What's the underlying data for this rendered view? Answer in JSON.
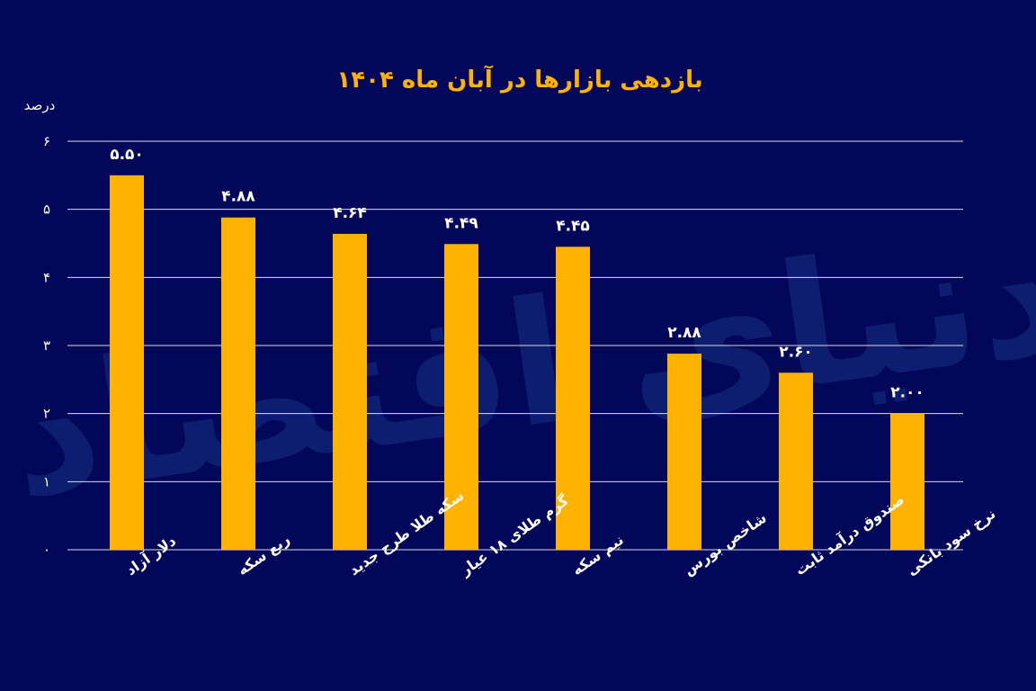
{
  "watermark": "دنیای اقتصاد",
  "colors": {
    "background": "#03075a",
    "bar": "#ffb300",
    "title": "#ffb300",
    "grid": "#ffffff",
    "text": "#ffffff"
  },
  "chart_data": {
    "type": "bar",
    "title": "بازدهی بازارها در آبان ماه ۱۴۰۴",
    "ylabel": "درصد",
    "xlabel": "",
    "ylim": [
      0,
      6
    ],
    "grid": true,
    "yticks": [
      0,
      1,
      2,
      3,
      4,
      5,
      6
    ],
    "ytick_labels": [
      "۰",
      "۱",
      "۲",
      "۳",
      "۴",
      "۵",
      "۶"
    ],
    "categories": [
      "دلار آزاد",
      "ربع سکه",
      "سکه طلا طرح جدید",
      "گرم طلای ۱۸ عیار",
      "نیم سکه",
      "شاخص بورس",
      "صندوق درآمد ثابت",
      "نرخ سود بانکی"
    ],
    "values": [
      5.5,
      4.88,
      4.64,
      4.49,
      4.45,
      2.88,
      2.6,
      2.0
    ],
    "data_labels": [
      "۵.۵۰",
      "۴.۸۸",
      "۴.۶۴",
      "۴.۴۹",
      "۴.۴۵",
      "۲.۸۸",
      "۲.۶۰",
      "۲.۰۰"
    ]
  }
}
